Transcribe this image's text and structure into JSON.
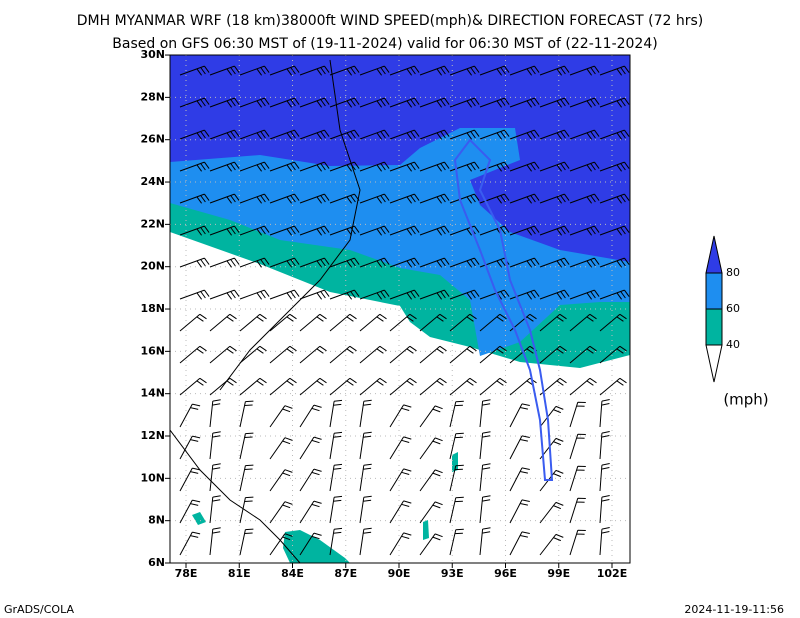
{
  "header": {
    "title": "DMH MYANMAR WRF (18 km)38000ft WIND SPEED(mph)& DIRECTION FORECAST (72 hrs)",
    "subtitle": "Based on GFS 06:30 MST of (19-11-2024) valid for 06:30 MST of (22-11-2024)"
  },
  "map": {
    "lat_labels": [
      "6N",
      "8N",
      "10N",
      "12N",
      "14N",
      "16N",
      "18N",
      "20N",
      "22N",
      "24N",
      "26N",
      "28N",
      "30N"
    ],
    "lon_labels": [
      "78E",
      "81E",
      "84E",
      "87E",
      "90E",
      "93E",
      "96E",
      "99E",
      "102E"
    ]
  },
  "legend": {
    "labels": [
      "40",
      "60",
      "80"
    ],
    "unit": "(mph)"
  },
  "footer": {
    "left": "GrADS/COLA",
    "right": "2024-11-19-11:56"
  }
}
